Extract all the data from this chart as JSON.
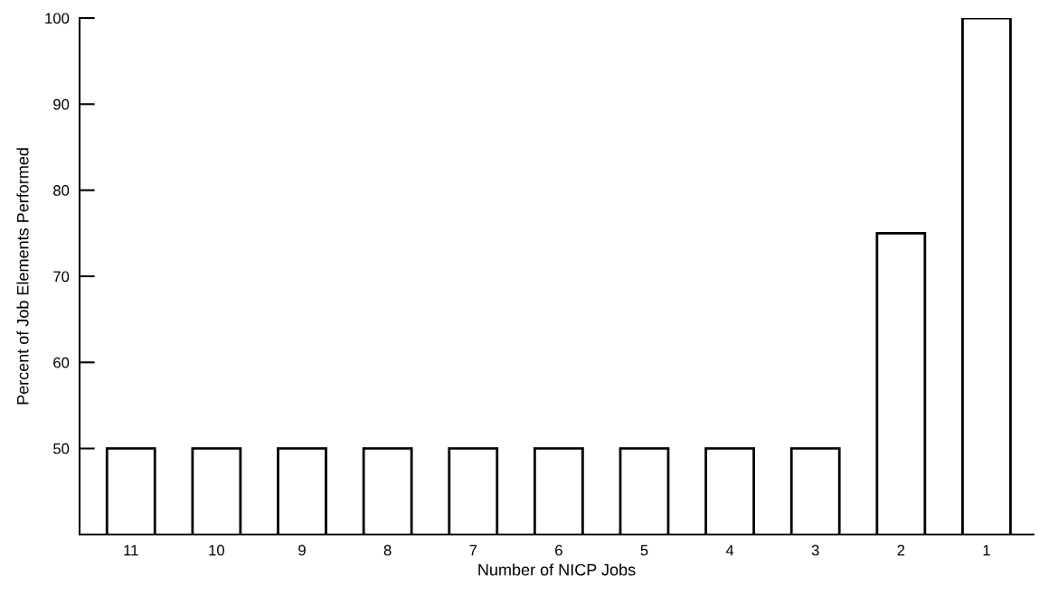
{
  "chart_data": {
    "type": "bar",
    "xlabel": "Number of NICP Jobs",
    "ylabel": "Percent of Job Elements Performed",
    "categories": [
      "11",
      "10",
      "9",
      "8",
      "7",
      "6",
      "5",
      "4",
      "3",
      "2",
      "1"
    ],
    "values": [
      50,
      50,
      50,
      50,
      50,
      50,
      50,
      50,
      50,
      75,
      100
    ],
    "color": "#ffffff",
    "ylim": [
      40,
      100
    ],
    "yticks": [
      {
        "value": 40,
        "label": null
      },
      50,
      60,
      70,
      80,
      90,
      100
    ],
    "grid": false
  }
}
